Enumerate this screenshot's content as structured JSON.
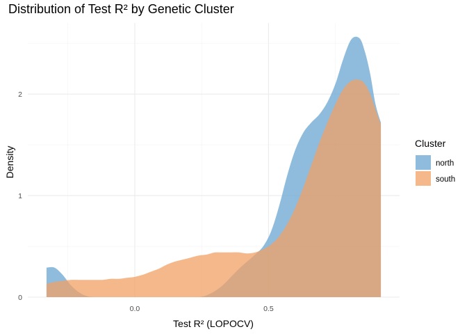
{
  "chart_data": {
    "type": "area",
    "title": "Distribution of Test R² by Genetic Cluster",
    "xlabel": "Test R² (LOPOCV)",
    "ylabel": "Density",
    "xlim": [
      -0.4,
      0.99
    ],
    "ylim": [
      0,
      2.7
    ],
    "x_ticks": [
      0.0,
      0.5
    ],
    "x_tick_labels": [
      "0.0",
      "0.5"
    ],
    "y_ticks": [
      0,
      1,
      2
    ],
    "y_tick_labels": [
      "0",
      "1",
      "2"
    ],
    "grid": true,
    "legend_position": "right",
    "legend_title": "Cluster",
    "series": [
      {
        "name": "north",
        "color": "#6aa6d1",
        "x": [
          -0.33,
          -0.3,
          -0.27,
          -0.24,
          -0.21,
          -0.18,
          -0.15,
          -0.12,
          -0.09,
          -0.06,
          -0.03,
          0.0,
          0.03,
          0.06,
          0.09,
          0.12,
          0.15,
          0.18,
          0.21,
          0.24,
          0.27,
          0.3,
          0.33,
          0.36,
          0.39,
          0.42,
          0.45,
          0.48,
          0.51,
          0.54,
          0.57,
          0.6,
          0.63,
          0.66,
          0.69,
          0.72,
          0.75,
          0.78,
          0.81,
          0.84,
          0.86,
          0.88,
          0.9,
          0.92
        ],
        "values": [
          0.29,
          0.29,
          0.22,
          0.12,
          0.05,
          0.01,
          0.0,
          0.0,
          0.0,
          0.0,
          0.0,
          0.0,
          0.0,
          0.0,
          0.0,
          0.0,
          0.0,
          0.0,
          0.0,
          0.0,
          0.02,
          0.06,
          0.12,
          0.2,
          0.28,
          0.35,
          0.42,
          0.5,
          0.65,
          0.9,
          1.2,
          1.45,
          1.62,
          1.72,
          1.8,
          1.92,
          2.1,
          2.35,
          2.54,
          2.55,
          2.42,
          2.2,
          1.9,
          1.72
        ]
      },
      {
        "name": "south",
        "color": "#f0a064",
        "x": [
          -0.33,
          -0.3,
          -0.27,
          -0.24,
          -0.21,
          -0.18,
          -0.15,
          -0.12,
          -0.09,
          -0.06,
          -0.03,
          0.0,
          0.03,
          0.06,
          0.09,
          0.12,
          0.15,
          0.18,
          0.21,
          0.24,
          0.27,
          0.3,
          0.33,
          0.36,
          0.39,
          0.42,
          0.45,
          0.48,
          0.51,
          0.54,
          0.57,
          0.6,
          0.63,
          0.66,
          0.69,
          0.72,
          0.75,
          0.78,
          0.81,
          0.84,
          0.86,
          0.88,
          0.9,
          0.92
        ],
        "values": [
          0.13,
          0.15,
          0.16,
          0.17,
          0.17,
          0.17,
          0.17,
          0.17,
          0.18,
          0.18,
          0.19,
          0.2,
          0.22,
          0.25,
          0.28,
          0.32,
          0.35,
          0.37,
          0.39,
          0.41,
          0.42,
          0.44,
          0.44,
          0.44,
          0.44,
          0.43,
          0.44,
          0.47,
          0.52,
          0.6,
          0.72,
          0.88,
          1.08,
          1.3,
          1.52,
          1.72,
          1.9,
          2.05,
          2.13,
          2.14,
          2.1,
          2.0,
          1.85,
          1.7
        ]
      }
    ]
  }
}
